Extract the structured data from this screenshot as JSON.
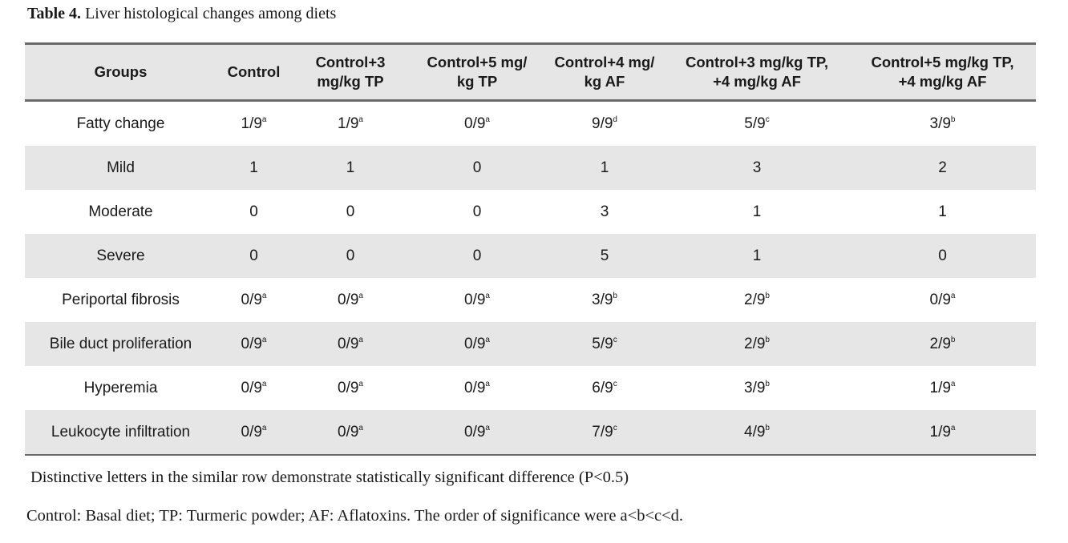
{
  "caption": {
    "label": "Table 4.",
    "title": "Liver histological changes among diets"
  },
  "table": {
    "headers": [
      [
        "Groups"
      ],
      [
        "Control"
      ],
      [
        "Control+3",
        "mg/kg TP"
      ],
      [
        "Control+5 mg/",
        "kg TP"
      ],
      [
        "Control+4 mg/",
        "kg AF"
      ],
      [
        "Control+3 mg/kg TP,",
        "+4 mg/kg AF"
      ],
      [
        "Control+5 mg/kg TP,",
        "+4 mg/kg AF"
      ]
    ],
    "rows": [
      {
        "label": "Fatty change",
        "cells": [
          {
            "v": "1/9",
            "s": "a"
          },
          {
            "v": "1/9",
            "s": "a"
          },
          {
            "v": "0/9",
            "s": "a"
          },
          {
            "v": "9/9",
            "s": "d"
          },
          {
            "v": "5/9",
            "s": "c"
          },
          {
            "v": "3/9",
            "s": "b"
          }
        ]
      },
      {
        "label": "Mild",
        "cells": [
          {
            "v": "1",
            "s": ""
          },
          {
            "v": "1",
            "s": ""
          },
          {
            "v": "0",
            "s": ""
          },
          {
            "v": "1",
            "s": ""
          },
          {
            "v": "3",
            "s": ""
          },
          {
            "v": "2",
            "s": ""
          }
        ]
      },
      {
        "label": "Moderate",
        "cells": [
          {
            "v": "0",
            "s": ""
          },
          {
            "v": "0",
            "s": ""
          },
          {
            "v": "0",
            "s": ""
          },
          {
            "v": "3",
            "s": ""
          },
          {
            "v": "1",
            "s": ""
          },
          {
            "v": "1",
            "s": ""
          }
        ]
      },
      {
        "label": "Severe",
        "cells": [
          {
            "v": "0",
            "s": ""
          },
          {
            "v": "0",
            "s": ""
          },
          {
            "v": "0",
            "s": ""
          },
          {
            "v": "5",
            "s": ""
          },
          {
            "v": "1",
            "s": ""
          },
          {
            "v": "0",
            "s": ""
          }
        ]
      },
      {
        "label": "Periportal fibrosis",
        "cells": [
          {
            "v": "0/9",
            "s": "a"
          },
          {
            "v": "0/9",
            "s": "a"
          },
          {
            "v": "0/9",
            "s": "a"
          },
          {
            "v": "3/9",
            "s": "b"
          },
          {
            "v": "2/9",
            "s": "b"
          },
          {
            "v": "0/9",
            "s": "a"
          }
        ]
      },
      {
        "label": "Bile duct proliferation",
        "cells": [
          {
            "v": "0/9",
            "s": "a"
          },
          {
            "v": "0/9",
            "s": "a"
          },
          {
            "v": "0/9",
            "s": "a"
          },
          {
            "v": "5/9",
            "s": "c"
          },
          {
            "v": "2/9",
            "s": "b"
          },
          {
            "v": "2/9",
            "s": "b"
          }
        ]
      },
      {
        "label": "Hyperemia",
        "cells": [
          {
            "v": "0/9",
            "s": "a"
          },
          {
            "v": "0/9",
            "s": "a"
          },
          {
            "v": "0/9",
            "s": "a"
          },
          {
            "v": "6/9",
            "s": "c"
          },
          {
            "v": "3/9",
            "s": "b"
          },
          {
            "v": "1/9",
            "s": "a"
          }
        ]
      },
      {
        "label": "Leukocyte infiltration",
        "cells": [
          {
            "v": "0/9",
            "s": "a"
          },
          {
            "v": "0/9",
            "s": "a"
          },
          {
            "v": "0/9",
            "s": "a"
          },
          {
            "v": "7/9",
            "s": "c"
          },
          {
            "v": "4/9",
            "s": "b"
          },
          {
            "v": "1/9",
            "s": "a"
          }
        ]
      }
    ]
  },
  "notes": [
    "Distinctive letters in the similar row demonstrate statistically significant difference (P<0.5)",
    "Control: Basal diet; TP: Turmeric powder; AF: Aflatoxins. The order of significance were a<b<c<d."
  ]
}
